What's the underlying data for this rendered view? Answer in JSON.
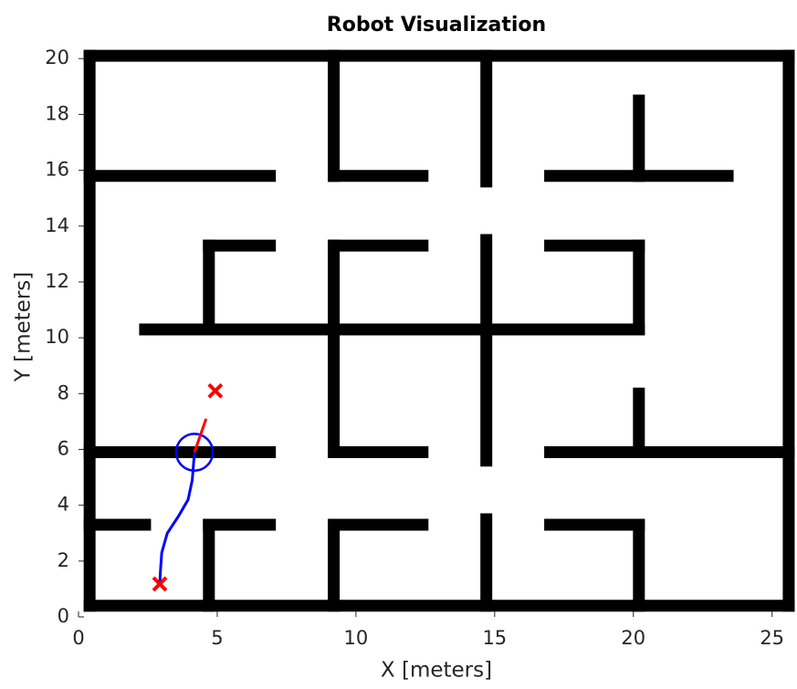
{
  "chart_data": {
    "type": "line",
    "title": "Robot Visualization",
    "x_label": "X [meters]",
    "y_label": "Y [meters]",
    "xlim": [
      0,
      25.8
    ],
    "ylim": [
      0,
      20.4
    ],
    "xticks": [
      0,
      5,
      10,
      15,
      20,
      25
    ],
    "yticks": [
      0,
      2,
      4,
      6,
      8,
      10,
      12,
      14,
      16,
      18,
      20
    ],
    "wall_color": "#000000",
    "walls": [
      [
        0.4,
        0.4,
        25.6,
        0.4
      ],
      [
        0.4,
        20.1,
        25.6,
        20.1
      ],
      [
        0.4,
        0.4,
        0.4,
        20.1
      ],
      [
        25.6,
        0.4,
        25.6,
        20.1
      ],
      [
        0.4,
        15.8,
        6.9,
        15.8
      ],
      [
        9.2,
        15.8,
        9.2,
        20.1
      ],
      [
        9.2,
        15.8,
        12.4,
        15.8
      ],
      [
        14.7,
        15.6,
        14.7,
        20.1
      ],
      [
        17.0,
        15.8,
        23.4,
        15.8
      ],
      [
        20.2,
        15.8,
        20.2,
        18.5
      ],
      [
        4.7,
        13.3,
        6.9,
        13.3
      ],
      [
        4.7,
        10.3,
        4.7,
        13.3
      ],
      [
        9.2,
        13.3,
        12.4,
        13.3
      ],
      [
        9.2,
        5.9,
        9.2,
        13.3
      ],
      [
        9.2,
        5.9,
        12.4,
        5.9
      ],
      [
        2.4,
        10.3,
        20.2,
        10.3
      ],
      [
        14.7,
        5.6,
        14.7,
        13.5
      ],
      [
        17.0,
        13.3,
        20.2,
        13.3
      ],
      [
        20.2,
        10.3,
        20.2,
        13.3
      ],
      [
        20.2,
        5.9,
        20.2,
        8.0
      ],
      [
        17.0,
        5.9,
        25.6,
        5.9
      ],
      [
        0.4,
        5.9,
        6.9,
        5.9
      ],
      [
        0.4,
        3.3,
        2.4,
        3.3
      ],
      [
        4.7,
        3.3,
        6.9,
        3.3
      ],
      [
        4.7,
        0.4,
        4.7,
        3.3
      ],
      [
        9.2,
        3.3,
        12.4,
        3.3
      ],
      [
        9.2,
        0.4,
        9.2,
        3.3
      ],
      [
        14.7,
        0.4,
        14.7,
        3.5
      ],
      [
        17.0,
        3.3,
        20.2,
        3.3
      ],
      [
        20.2,
        0.4,
        20.2,
        3.3
      ]
    ],
    "path": {
      "color": "#0000ff",
      "x": [
        2.93,
        2.95,
        3.0,
        3.2,
        3.6,
        3.95,
        4.1,
        4.18
      ],
      "y": [
        1.18,
        1.6,
        2.3,
        3.0,
        3.6,
        4.2,
        4.9,
        5.9
      ]
    },
    "start": {
      "x": 2.93,
      "y": 1.18,
      "color": "#ff0000"
    },
    "goal": {
      "x": 4.93,
      "y": 8.1,
      "color": "#ff0000"
    },
    "robot": {
      "x": 4.18,
      "y": 5.9,
      "radius": 0.66,
      "color": "#0000ff",
      "heading_x": 4.6,
      "heading_y": 7.1,
      "heading_color": "#ff0000"
    }
  }
}
